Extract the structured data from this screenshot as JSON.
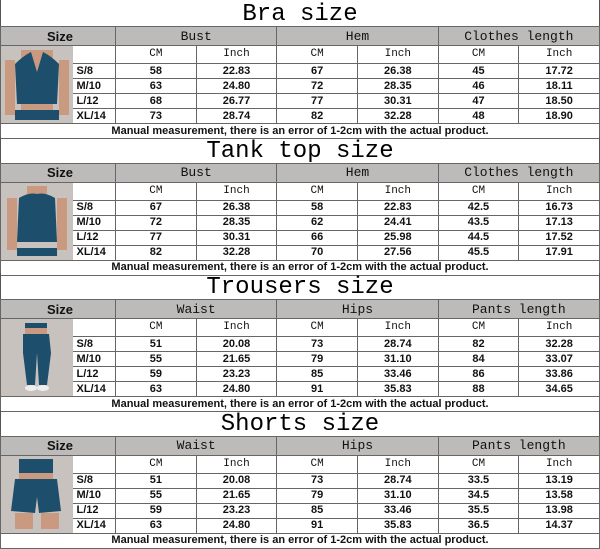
{
  "size_label": "Size",
  "note": "Manual measurement, there is an error of 1-2cm with the actual product.",
  "unit_cm": "CM",
  "unit_inch": "Inch",
  "colors": {
    "garment": "#1d4e6b",
    "header_bg": "#bdbbba",
    "photo_bg": "#c8c2be",
    "skin": "#c99a80"
  },
  "sections": [
    {
      "title": "Bra size",
      "photo_icon": "halter-bra-photo",
      "measures": [
        "Bust",
        "Hem",
        "Clothes length"
      ],
      "rows": [
        {
          "size": "S/8",
          "values": [
            "58",
            "22.83",
            "67",
            "26.38",
            "45",
            "17.72"
          ]
        },
        {
          "size": "M/10",
          "values": [
            "63",
            "24.80",
            "72",
            "28.35",
            "46",
            "18.11"
          ]
        },
        {
          "size": "L/12",
          "values": [
            "68",
            "26.77",
            "77",
            "30.31",
            "47",
            "18.50"
          ]
        },
        {
          "size": "XL/14",
          "values": [
            "73",
            "28.74",
            "82",
            "32.28",
            "48",
            "18.90"
          ]
        }
      ]
    },
    {
      "title": "Tank top size",
      "photo_icon": "tank-top-photo",
      "measures": [
        "Bust",
        "Hem",
        "Clothes length"
      ],
      "rows": [
        {
          "size": "S/8",
          "values": [
            "67",
            "26.38",
            "58",
            "22.83",
            "42.5",
            "16.73"
          ]
        },
        {
          "size": "M/10",
          "values": [
            "72",
            "28.35",
            "62",
            "24.41",
            "43.5",
            "17.13"
          ]
        },
        {
          "size": "L/12",
          "values": [
            "77",
            "30.31",
            "66",
            "25.98",
            "44.5",
            "17.52"
          ]
        },
        {
          "size": "XL/14",
          "values": [
            "82",
            "32.28",
            "70",
            "27.56",
            "45.5",
            "17.91"
          ]
        }
      ]
    },
    {
      "title": "Trousers size",
      "photo_icon": "leggings-photo",
      "measures": [
        "Waist",
        "Hips",
        "Pants length"
      ],
      "rows": [
        {
          "size": "S/8",
          "values": [
            "51",
            "20.08",
            "73",
            "28.74",
            "82",
            "32.28"
          ]
        },
        {
          "size": "M/10",
          "values": [
            "55",
            "21.65",
            "79",
            "31.10",
            "84",
            "33.07"
          ]
        },
        {
          "size": "L/12",
          "values": [
            "59",
            "23.23",
            "85",
            "33.46",
            "86",
            "33.86"
          ]
        },
        {
          "size": "XL/14",
          "values": [
            "63",
            "24.80",
            "91",
            "35.83",
            "88",
            "34.65"
          ]
        }
      ]
    },
    {
      "title": "Shorts size",
      "photo_icon": "shorts-photo",
      "measures": [
        "Waist",
        "Hips",
        "Pants length"
      ],
      "rows": [
        {
          "size": "S/8",
          "values": [
            "51",
            "20.08",
            "73",
            "28.74",
            "33.5",
            "13.19"
          ]
        },
        {
          "size": "M/10",
          "values": [
            "55",
            "21.65",
            "79",
            "31.10",
            "34.5",
            "13.58"
          ]
        },
        {
          "size": "L/12",
          "values": [
            "59",
            "23.23",
            "85",
            "33.46",
            "35.5",
            "13.98"
          ]
        },
        {
          "size": "XL/14",
          "values": [
            "63",
            "24.80",
            "91",
            "35.83",
            "36.5",
            "14.37"
          ]
        }
      ]
    }
  ]
}
